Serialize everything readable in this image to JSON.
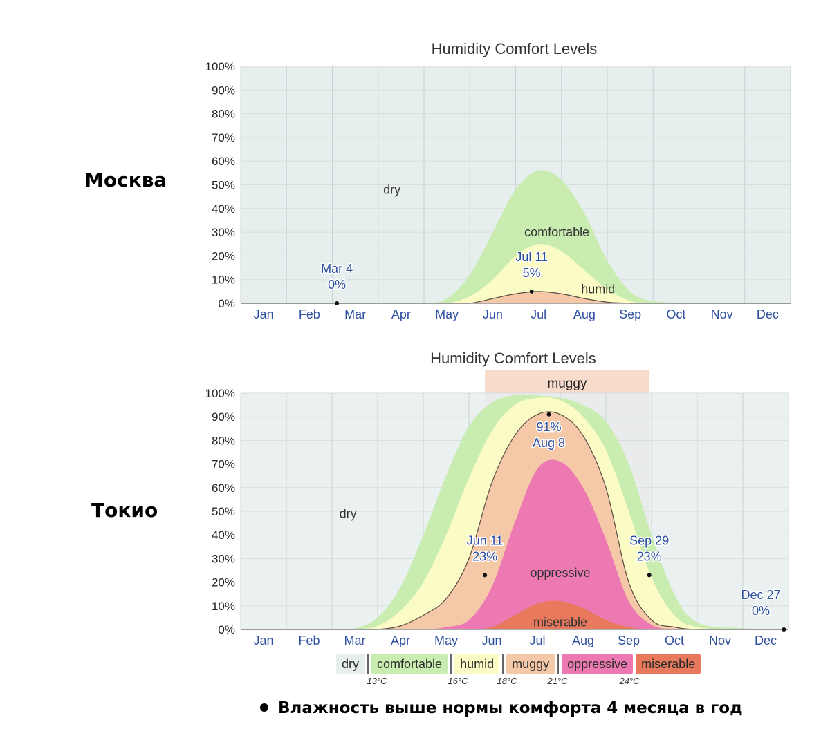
{
  "cities": {
    "moscow": "Москва",
    "tokyo": "Токио"
  },
  "footnote": "Влажность выше нормы комфорта 4 месяца в год",
  "legend": {
    "items": [
      {
        "label": "dry",
        "color": "#e7eeee"
      },
      {
        "label": "comfortable",
        "color": "#c9ecb0"
      },
      {
        "label": "humid",
        "color": "#fbfbc5"
      },
      {
        "label": "muggy",
        "color": "#f5c9a7"
      },
      {
        "label": "oppressive",
        "color": "#ec79b1"
      },
      {
        "label": "miserable",
        "color": "#e8795d"
      }
    ],
    "thresholds": [
      "13°C",
      "16°C",
      "18°C",
      "21°C",
      "24°C"
    ]
  },
  "colors": {
    "dry": "#e7eeee",
    "comfortable": "#c9ecb0",
    "humid": "#fbfbc5",
    "muggy": "#f5c9a7",
    "oppressive": "#ec79b1",
    "miserable": "#e8795d",
    "label_blue": "#2d4fa0"
  },
  "chart_data": [
    {
      "type": "area",
      "title": "Humidity Comfort Levels",
      "categories": [
        "Jan",
        "Feb",
        "Mar",
        "Apr",
        "May",
        "Jun",
        "Jul",
        "Aug",
        "Sep",
        "Oct",
        "Nov",
        "Dec"
      ],
      "ylim": [
        0,
        100
      ],
      "yticks": [
        "0%",
        "10%",
        "20%",
        "30%",
        "40%",
        "50%",
        "60%",
        "70%",
        "80%",
        "90%",
        "100%"
      ],
      "grid": true,
      "x": [
        1,
        2,
        3,
        4,
        5,
        5.5,
        6,
        6.5,
        7,
        7.5,
        8,
        8.5,
        9,
        9.5,
        10,
        11,
        12,
        13
      ],
      "series": [
        {
          "name": "comfortable",
          "values": [
            0,
            0,
            0,
            0,
            0,
            2,
            12,
            30,
            48,
            56,
            52,
            38,
            18,
            5,
            1,
            0,
            0,
            0
          ]
        },
        {
          "name": "humid",
          "values": [
            0,
            0,
            0,
            0,
            0,
            0,
            3,
            10,
            20,
            25,
            22,
            14,
            6,
            1,
            0,
            0,
            0,
            0
          ]
        },
        {
          "name": "muggy",
          "values": [
            0,
            0,
            0,
            0,
            0,
            0,
            0,
            2,
            4,
            5,
            4,
            2,
            0.5,
            0,
            0,
            0,
            0,
            0
          ]
        }
      ],
      "annotations": [
        {
          "label": [
            "Mar 4",
            "0%"
          ],
          "x": 3.1,
          "y": 0
        },
        {
          "label": [
            "Jul 11",
            "5%"
          ],
          "x": 7.35,
          "y": 5
        }
      ],
      "band_labels": [
        {
          "text": "dry",
          "x": 4.3,
          "y": 48
        },
        {
          "text": "comfortable",
          "x": 7.9,
          "y": 30
        },
        {
          "text": "humid",
          "x": 8.8,
          "y": 6
        }
      ]
    },
    {
      "type": "area",
      "title": "Humidity Comfort Levels",
      "categories": [
        "Jan",
        "Feb",
        "Mar",
        "Apr",
        "May",
        "Jun",
        "Jul",
        "Aug",
        "Sep",
        "Oct",
        "Nov",
        "Dec"
      ],
      "ylim": [
        0,
        100
      ],
      "yticks": [
        "0%",
        "10%",
        "20%",
        "30%",
        "40%",
        "50%",
        "60%",
        "70%",
        "80%",
        "90%",
        "100%"
      ],
      "grid": true,
      "x": [
        1,
        2,
        3,
        3.5,
        4,
        4.5,
        5,
        5.5,
        6,
        6.5,
        7,
        7.5,
        8,
        8.5,
        9,
        9.5,
        10,
        10.5,
        11,
        12,
        13
      ],
      "series": [
        {
          "name": "comfortable",
          "values": [
            0,
            0,
            0,
            0.5,
            5,
            18,
            40,
            65,
            86,
            96,
            99,
            99,
            98,
            95,
            88,
            70,
            40,
            15,
            3,
            0.5,
            0
          ]
        },
        {
          "name": "humid",
          "values": [
            0,
            0,
            0,
            0,
            1.5,
            8,
            20,
            40,
            64,
            84,
            95,
            98,
            97,
            90,
            76,
            50,
            22,
            6,
            1,
            0,
            0
          ]
        },
        {
          "name": "muggy",
          "values": [
            0,
            0,
            0,
            0,
            0,
            1.5,
            6,
            13,
            30,
            62,
            82,
            91,
            91,
            82,
            60,
            20,
            4,
            1,
            0,
            0,
            0
          ]
        },
        {
          "name": "oppressive",
          "values": [
            0,
            0,
            0,
            0,
            0,
            0,
            0,
            1,
            4,
            18,
            45,
            68,
            71,
            60,
            38,
            12,
            2,
            0,
            0,
            0,
            0
          ]
        },
        {
          "name": "miserable",
          "values": [
            0,
            0,
            0,
            0,
            0,
            0,
            0,
            0,
            0,
            1,
            6,
            11,
            12,
            9,
            4,
            1,
            0,
            0,
            0,
            0,
            0
          ]
        }
      ],
      "annotations": [
        {
          "label": [
            "Jun 11",
            "23%"
          ],
          "x": 6.35,
          "y": 23
        },
        {
          "label": [
            "91%",
            "Aug 8"
          ],
          "x": 7.75,
          "y": 91
        },
        {
          "label": [
            "Sep 29",
            "23%"
          ],
          "x": 9.95,
          "y": 23
        },
        {
          "label": [
            "Dec 27",
            "0%"
          ],
          "x": 12.9,
          "y": 0
        }
      ],
      "band_labels": [
        {
          "text": "dry",
          "x": 3.35,
          "y": 49
        },
        {
          "text": "oppressive",
          "x": 8.0,
          "y": 24
        },
        {
          "text": "miserable",
          "x": 8.0,
          "y": 3
        }
      ],
      "highlight": {
        "label": "muggy",
        "from": 6.35,
        "to": 9.95
      }
    }
  ]
}
